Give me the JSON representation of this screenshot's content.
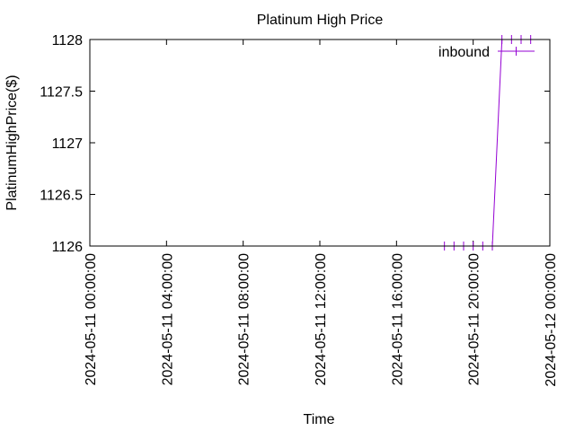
{
  "chart_data": {
    "type": "line",
    "title": "Platinum High Price",
    "xlabel": "Time",
    "ylabel": "PlatinumHighPrice($)",
    "xlim": [
      "2024-05-11 00:00:00",
      "2024-05-12 00:00:00"
    ],
    "ylim": [
      1126,
      1128
    ],
    "x_ticks": [
      "2024-05-11 00:00:00",
      "2024-05-11 04:00:00",
      "2024-05-11 08:00:00",
      "2024-05-11 12:00:00",
      "2024-05-11 16:00:00",
      "2024-05-11 20:00:00",
      "2024-05-12 00:00:00"
    ],
    "y_ticks": [
      {
        "value": 1126,
        "label": "1126"
      },
      {
        "value": 1126.5,
        "label": "1126.5"
      },
      {
        "value": 1127,
        "label": "1127"
      },
      {
        "value": 1127.5,
        "label": "1127.5"
      },
      {
        "value": 1128,
        "label": "1128"
      }
    ],
    "grid": false,
    "legend": "top-right",
    "series": [
      {
        "name": "inbound",
        "color": "#9400d3",
        "marker": "vertical-tick",
        "x": [
          "2024-05-11 18:30:00",
          "2024-05-11 19:00:00",
          "2024-05-11 19:30:00",
          "2024-05-11 20:00:00",
          "2024-05-11 20:30:00",
          "2024-05-11 21:00:00",
          "2024-05-11 21:30:00",
          "2024-05-11 22:00:00",
          "2024-05-11 22:30:00",
          "2024-05-11 23:00:00"
        ],
        "y": [
          1126,
          1126,
          1126,
          1126,
          1126,
          1126,
          1128,
          1128,
          1128,
          1128
        ]
      }
    ]
  }
}
